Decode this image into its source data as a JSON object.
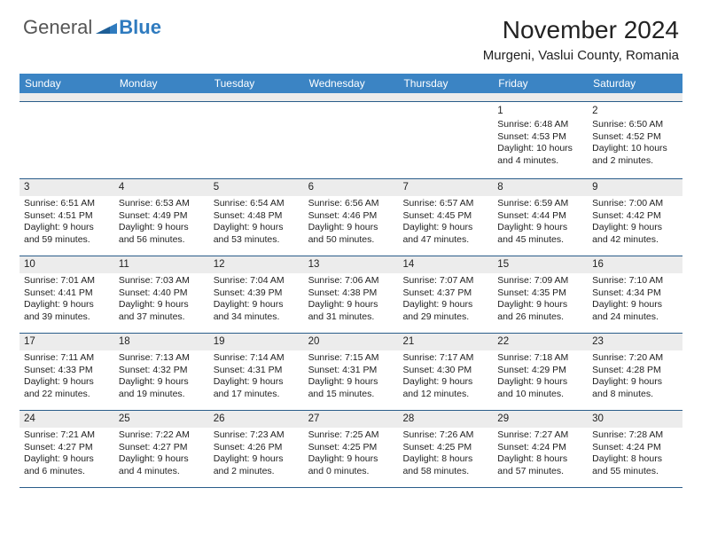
{
  "brand": {
    "text1": "General",
    "text2": "Blue"
  },
  "header": {
    "month_title": "November 2024",
    "location": "Murgeni, Vaslui County, Romania"
  },
  "colors": {
    "header_bg": "#3b84c4",
    "header_text": "#ffffff",
    "row_divider": "#2a5d8a",
    "num_strip_bg": "#ececec",
    "brand_gray": "#555555",
    "brand_blue": "#2f7bbf",
    "text": "#222222",
    "background": "#ffffff"
  },
  "day_names": [
    "Sunday",
    "Monday",
    "Tuesday",
    "Wednesday",
    "Thursday",
    "Friday",
    "Saturday"
  ],
  "weeks": [
    [
      null,
      null,
      null,
      null,
      null,
      {
        "n": "1",
        "sr": "6:48 AM",
        "ss": "4:53 PM",
        "dl": "10 hours and 4 minutes."
      },
      {
        "n": "2",
        "sr": "6:50 AM",
        "ss": "4:52 PM",
        "dl": "10 hours and 2 minutes."
      }
    ],
    [
      {
        "n": "3",
        "sr": "6:51 AM",
        "ss": "4:51 PM",
        "dl": "9 hours and 59 minutes."
      },
      {
        "n": "4",
        "sr": "6:53 AM",
        "ss": "4:49 PM",
        "dl": "9 hours and 56 minutes."
      },
      {
        "n": "5",
        "sr": "6:54 AM",
        "ss": "4:48 PM",
        "dl": "9 hours and 53 minutes."
      },
      {
        "n": "6",
        "sr": "6:56 AM",
        "ss": "4:46 PM",
        "dl": "9 hours and 50 minutes."
      },
      {
        "n": "7",
        "sr": "6:57 AM",
        "ss": "4:45 PM",
        "dl": "9 hours and 47 minutes."
      },
      {
        "n": "8",
        "sr": "6:59 AM",
        "ss": "4:44 PM",
        "dl": "9 hours and 45 minutes."
      },
      {
        "n": "9",
        "sr": "7:00 AM",
        "ss": "4:42 PM",
        "dl": "9 hours and 42 minutes."
      }
    ],
    [
      {
        "n": "10",
        "sr": "7:01 AM",
        "ss": "4:41 PM",
        "dl": "9 hours and 39 minutes."
      },
      {
        "n": "11",
        "sr": "7:03 AM",
        "ss": "4:40 PM",
        "dl": "9 hours and 37 minutes."
      },
      {
        "n": "12",
        "sr": "7:04 AM",
        "ss": "4:39 PM",
        "dl": "9 hours and 34 minutes."
      },
      {
        "n": "13",
        "sr": "7:06 AM",
        "ss": "4:38 PM",
        "dl": "9 hours and 31 minutes."
      },
      {
        "n": "14",
        "sr": "7:07 AM",
        "ss": "4:37 PM",
        "dl": "9 hours and 29 minutes."
      },
      {
        "n": "15",
        "sr": "7:09 AM",
        "ss": "4:35 PM",
        "dl": "9 hours and 26 minutes."
      },
      {
        "n": "16",
        "sr": "7:10 AM",
        "ss": "4:34 PM",
        "dl": "9 hours and 24 minutes."
      }
    ],
    [
      {
        "n": "17",
        "sr": "7:11 AM",
        "ss": "4:33 PM",
        "dl": "9 hours and 22 minutes."
      },
      {
        "n": "18",
        "sr": "7:13 AM",
        "ss": "4:32 PM",
        "dl": "9 hours and 19 minutes."
      },
      {
        "n": "19",
        "sr": "7:14 AM",
        "ss": "4:31 PM",
        "dl": "9 hours and 17 minutes."
      },
      {
        "n": "20",
        "sr": "7:15 AM",
        "ss": "4:31 PM",
        "dl": "9 hours and 15 minutes."
      },
      {
        "n": "21",
        "sr": "7:17 AM",
        "ss": "4:30 PM",
        "dl": "9 hours and 12 minutes."
      },
      {
        "n": "22",
        "sr": "7:18 AM",
        "ss": "4:29 PM",
        "dl": "9 hours and 10 minutes."
      },
      {
        "n": "23",
        "sr": "7:20 AM",
        "ss": "4:28 PM",
        "dl": "9 hours and 8 minutes."
      }
    ],
    [
      {
        "n": "24",
        "sr": "7:21 AM",
        "ss": "4:27 PM",
        "dl": "9 hours and 6 minutes."
      },
      {
        "n": "25",
        "sr": "7:22 AM",
        "ss": "4:27 PM",
        "dl": "9 hours and 4 minutes."
      },
      {
        "n": "26",
        "sr": "7:23 AM",
        "ss": "4:26 PM",
        "dl": "9 hours and 2 minutes."
      },
      {
        "n": "27",
        "sr": "7:25 AM",
        "ss": "4:25 PM",
        "dl": "9 hours and 0 minutes."
      },
      {
        "n": "28",
        "sr": "7:26 AM",
        "ss": "4:25 PM",
        "dl": "8 hours and 58 minutes."
      },
      {
        "n": "29",
        "sr": "7:27 AM",
        "ss": "4:24 PM",
        "dl": "8 hours and 57 minutes."
      },
      {
        "n": "30",
        "sr": "7:28 AM",
        "ss": "4:24 PM",
        "dl": "8 hours and 55 minutes."
      }
    ]
  ],
  "labels": {
    "sunrise": "Sunrise:",
    "sunset": "Sunset:",
    "daylight": "Daylight:"
  }
}
